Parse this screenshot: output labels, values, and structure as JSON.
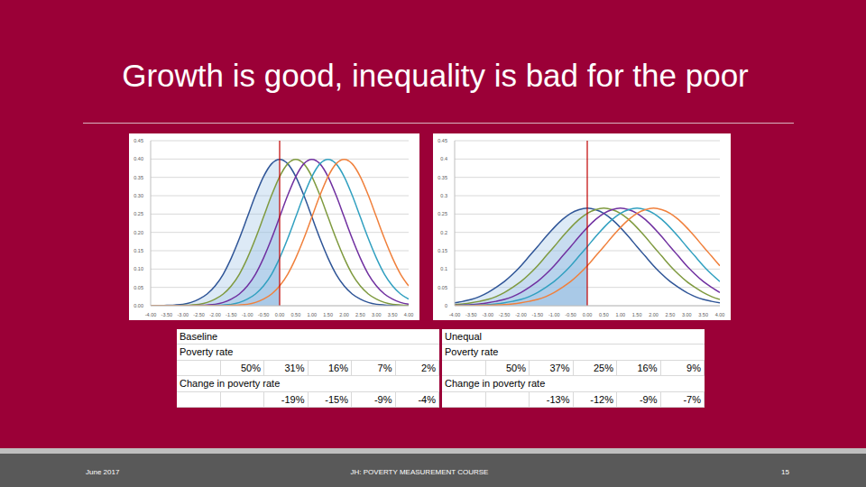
{
  "title": "Growth is good, inequality is bad for the poor",
  "footer": {
    "left": "June 2017",
    "center": "JH: POVERTY MEASUREMENT COURSE",
    "right": "15"
  },
  "chart_data": [
    {
      "type": "line",
      "grid": true,
      "poverty_line": 0,
      "xlim": [
        -4,
        4
      ],
      "ylim": [
        0,
        0.45
      ],
      "xticks": [
        {
          "value": -4,
          "label": "-4.00"
        },
        {
          "value": -3.5,
          "label": "-3.50"
        },
        {
          "value": -3,
          "label": "-3.00"
        },
        {
          "value": -2.5,
          "label": "-2.50"
        },
        {
          "value": -2,
          "label": "-2.00"
        },
        {
          "value": -1.5,
          "label": "-1.50"
        },
        {
          "value": -1,
          "label": "-1.00"
        },
        {
          "value": -0.5,
          "label": "-0.50"
        },
        {
          "value": 0,
          "label": "0.00"
        },
        {
          "value": 0.5,
          "label": "0.50"
        },
        {
          "value": 1,
          "label": "1.00"
        },
        {
          "value": 1.5,
          "label": "1.50"
        },
        {
          "value": 2,
          "label": "2.00"
        },
        {
          "value": 2.5,
          "label": "2.50"
        },
        {
          "value": 3,
          "label": "3.00"
        },
        {
          "value": 3.5,
          "label": "3.50"
        },
        {
          "value": 4,
          "label": "4.00"
        }
      ],
      "yticks": [
        {
          "value": 0,
          "label": "0.00"
        },
        0.05,
        {
          "value": 0.1,
          "label": "0.10"
        },
        0.15,
        {
          "value": 0.2,
          "label": "0.20"
        },
        0.25,
        {
          "value": 0.3,
          "label": "0.30"
        },
        0.35,
        {
          "value": 0.4,
          "label": "0.40"
        },
        0.45
      ],
      "x": [
        -4,
        -3.75,
        -3.5,
        -3.25,
        -3,
        -2.75,
        -2.5,
        -2.25,
        -2,
        -1.75,
        -1.5,
        -1.25,
        -1,
        -0.75,
        -0.5,
        -0.25,
        0,
        0.25,
        0.5,
        0.75,
        1,
        1.25,
        1.5,
        1.75,
        2,
        2.25,
        2.5,
        2.75,
        3,
        3.25,
        3.5,
        3.75,
        4
      ],
      "series": [
        {
          "color": "#2f5597",
          "values": [
            0,
            0,
            0.001,
            0.002,
            0.004,
            0.009,
            0.018,
            0.032,
            0.054,
            0.086,
            0.13,
            0.183,
            0.242,
            0.301,
            0.352,
            0.387,
            0.399,
            0.387,
            0.352,
            0.301,
            0.242,
            0.183,
            0.13,
            0.086,
            0.054,
            0.032,
            0.018,
            0.009,
            0.004,
            0.002,
            0.001,
            0,
            0
          ]
        },
        {
          "color": "#7f9a3f",
          "values": [
            0,
            0,
            0,
            0,
            0.001,
            0.002,
            0.004,
            0.009,
            0.018,
            0.032,
            0.054,
            0.086,
            0.13,
            0.183,
            0.242,
            0.301,
            0.352,
            0.387,
            0.399,
            0.387,
            0.352,
            0.301,
            0.242,
            0.183,
            0.13,
            0.086,
            0.054,
            0.032,
            0.018,
            0.009,
            0.004,
            0.002,
            0.001
          ]
        },
        {
          "color": "#7030a0",
          "values": [
            0,
            0,
            0,
            0,
            0,
            0,
            0.001,
            0.002,
            0.004,
            0.009,
            0.018,
            0.032,
            0.054,
            0.086,
            0.13,
            0.183,
            0.242,
            0.301,
            0.352,
            0.387,
            0.399,
            0.387,
            0.352,
            0.301,
            0.242,
            0.183,
            0.13,
            0.086,
            0.054,
            0.032,
            0.018,
            0.009,
            0.004
          ]
        },
        {
          "color": "#31a0c0",
          "values": [
            0,
            0,
            0,
            0,
            0,
            0,
            0,
            0,
            0.001,
            0.002,
            0.004,
            0.009,
            0.018,
            0.032,
            0.054,
            0.086,
            0.13,
            0.183,
            0.242,
            0.301,
            0.352,
            0.387,
            0.399,
            0.387,
            0.352,
            0.301,
            0.242,
            0.183,
            0.13,
            0.086,
            0.054,
            0.032,
            0.018
          ]
        },
        {
          "color": "#f0803c",
          "values": [
            0,
            0,
            0,
            0,
            0,
            0,
            0,
            0,
            0,
            0,
            0.001,
            0.002,
            0.004,
            0.009,
            0.018,
            0.032,
            0.054,
            0.086,
            0.13,
            0.183,
            0.242,
            0.301,
            0.352,
            0.387,
            0.399,
            0.387,
            0.352,
            0.301,
            0.242,
            0.183,
            0.13,
            0.086,
            0.054
          ]
        }
      ]
    },
    {
      "type": "line",
      "grid": true,
      "poverty_line": 0,
      "xlim": [
        -4,
        4
      ],
      "ylim": [
        0,
        0.45
      ],
      "xticks": [
        {
          "value": -4,
          "label": "-4.00"
        },
        {
          "value": -3.5,
          "label": "-3.50"
        },
        {
          "value": -3,
          "label": "-3.00"
        },
        {
          "value": -2.5,
          "label": "-2.50"
        },
        {
          "value": -2,
          "label": "-2.00"
        },
        {
          "value": -1.5,
          "label": "-1.50"
        },
        {
          "value": -1,
          "label": "-1.00"
        },
        {
          "value": -0.5,
          "label": "-0.50"
        },
        {
          "value": 0,
          "label": "0.00"
        },
        {
          "value": 0.5,
          "label": "0.50"
        },
        {
          "value": 1,
          "label": "1.00"
        },
        {
          "value": 1.5,
          "label": "1.50"
        },
        {
          "value": 2,
          "label": "2.00"
        },
        {
          "value": 2.5,
          "label": "2.50"
        },
        {
          "value": 3,
          "label": "3.00"
        },
        {
          "value": 3.5,
          "label": "3.50"
        },
        {
          "value": 4,
          "label": "4.00"
        }
      ],
      "yticks": [
        0,
        0.05,
        0.1,
        0.15,
        0.2,
        0.25,
        0.3,
        0.35,
        0.4,
        0.45
      ],
      "x": [
        -4,
        -3.75,
        -3.5,
        -3.25,
        -3,
        -2.75,
        -2.5,
        -2.25,
        -2,
        -1.75,
        -1.5,
        -1.25,
        -1,
        -0.75,
        -0.5,
        -0.25,
        0,
        0.25,
        0.5,
        0.75,
        1,
        1.25,
        1.5,
        1.75,
        2,
        2.25,
        2.5,
        2.75,
        3,
        3.25,
        3.5,
        3.75,
        4
      ],
      "series": [
        {
          "color": "#2f5597",
          "values": [
            0.008,
            0.012,
            0.017,
            0.025,
            0.036,
            0.05,
            0.066,
            0.086,
            0.109,
            0.135,
            0.161,
            0.188,
            0.213,
            0.235,
            0.252,
            0.262,
            0.266,
            0.262,
            0.252,
            0.235,
            0.213,
            0.188,
            0.161,
            0.135,
            0.109,
            0.086,
            0.066,
            0.05,
            0.036,
            0.025,
            0.017,
            0.012,
            0.008
          ]
        },
        {
          "color": "#7f9a3f",
          "values": [
            0.003,
            0.005,
            0.008,
            0.012,
            0.017,
            0.025,
            0.036,
            0.05,
            0.066,
            0.086,
            0.109,
            0.135,
            0.161,
            0.188,
            0.213,
            0.235,
            0.252,
            0.262,
            0.266,
            0.262,
            0.252,
            0.235,
            0.213,
            0.188,
            0.161,
            0.135,
            0.109,
            0.086,
            0.066,
            0.05,
            0.036,
            0.025,
            0.017
          ]
        },
        {
          "color": "#7030a0",
          "values": [
            0.001,
            0.002,
            0.003,
            0.005,
            0.008,
            0.012,
            0.017,
            0.025,
            0.036,
            0.05,
            0.066,
            0.086,
            0.109,
            0.135,
            0.161,
            0.188,
            0.213,
            0.235,
            0.252,
            0.262,
            0.266,
            0.262,
            0.252,
            0.235,
            0.213,
            0.188,
            0.161,
            0.135,
            0.109,
            0.086,
            0.066,
            0.05,
            0.036
          ]
        },
        {
          "color": "#31a0c0",
          "values": [
            0,
            0.001,
            0.001,
            0.002,
            0.003,
            0.005,
            0.008,
            0.012,
            0.017,
            0.025,
            0.036,
            0.05,
            0.066,
            0.086,
            0.109,
            0.135,
            0.161,
            0.188,
            0.213,
            0.235,
            0.252,
            0.262,
            0.266,
            0.262,
            0.252,
            0.235,
            0.213,
            0.188,
            0.161,
            0.135,
            0.109,
            0.086,
            0.066
          ]
        },
        {
          "color": "#f0803c",
          "values": [
            0,
            0,
            0,
            0.001,
            0.001,
            0.002,
            0.003,
            0.005,
            0.008,
            0.012,
            0.017,
            0.025,
            0.036,
            0.05,
            0.066,
            0.086,
            0.109,
            0.135,
            0.161,
            0.188,
            0.213,
            0.235,
            0.252,
            0.262,
            0.266,
            0.262,
            0.252,
            0.235,
            0.213,
            0.188,
            0.161,
            0.135,
            0.109
          ]
        }
      ]
    }
  ],
  "tables": [
    {
      "title": "Baseline",
      "rows": [
        {
          "label": "Poverty rate",
          "values": [
            "50%",
            "31%",
            "16%",
            "7%",
            "2%"
          ]
        },
        {
          "label": "Change in poverty rate",
          "values": [
            "-19%",
            "-15%",
            "-9%",
            "-4%"
          ]
        }
      ]
    },
    {
      "title": "Unequal",
      "rows": [
        {
          "label": "Poverty rate",
          "values": [
            "50%",
            "37%",
            "25%",
            "16%",
            "9%"
          ]
        },
        {
          "label": "Change in poverty rate",
          "values": [
            "-13%",
            "-12%",
            "-9%",
            "-7%"
          ]
        }
      ]
    }
  ]
}
